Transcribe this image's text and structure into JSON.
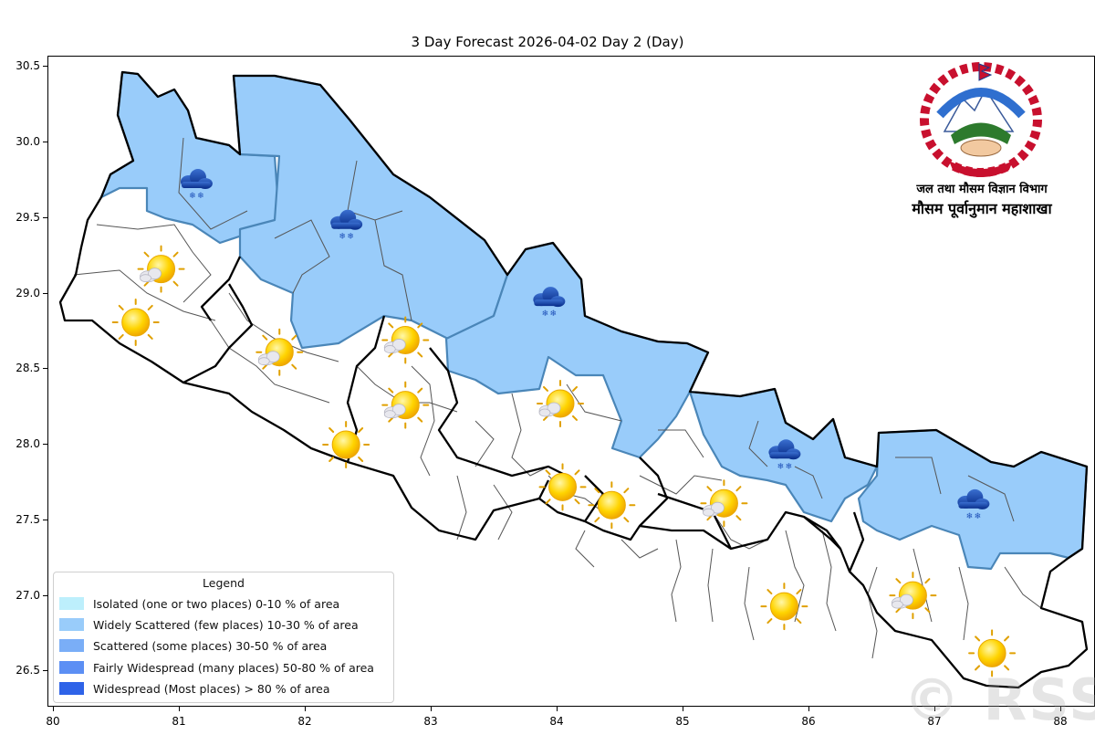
{
  "title": "3 Day Forecast 2026-04-02 Day 2 (Day)",
  "axes": {
    "x_ticks": [
      "80",
      "81",
      "82",
      "83",
      "84",
      "85",
      "86",
      "87",
      "88"
    ],
    "y_ticks": [
      "30.5",
      "30.0",
      "29.5",
      "29.0",
      "28.5",
      "28.0",
      "27.5",
      "27.0",
      "26.5"
    ],
    "xlim": [
      80,
      88.3
    ],
    "ylim": [
      26.25,
      30.55
    ]
  },
  "legend": {
    "title": "Legend",
    "items": [
      {
        "label": "Isolated (one or two places)  0-10 % of area",
        "color": "#bdeffc"
      },
      {
        "label": "Widely Scattered (few places)  10-30 % of area",
        "color": "#99ccfa"
      },
      {
        "label": "Scattered (some places)  30-50 % of area",
        "color": "#7aaef7"
      },
      {
        "label": "Fairly Widespread (many places)  50-80 % of area",
        "color": "#5c8ff4"
      },
      {
        "label": "Widespread (Most places) > 80 % of area",
        "color": "#2e63e8"
      }
    ]
  },
  "department": {
    "line1": "जल तथा मौसम विज्ञान विभाग",
    "line2": "मौसम पूर्वानुमान महाशाखा"
  },
  "watermark": "© RSS",
  "colors": {
    "widely_scattered_fill": "#99ccfa",
    "region_border": "#4a86b8",
    "district_line": "#555555",
    "province_line": "#000000"
  },
  "map_regions": [
    {
      "name": "far-west-mountain",
      "category": "Widely Scattered (few places)"
    },
    {
      "name": "karnali-mountain",
      "category": "Widely Scattered (few places)"
    },
    {
      "name": "gandaki-mountain",
      "category": "Widely Scattered (few places)"
    },
    {
      "name": "bagmati-mountain",
      "category": "Widely Scattered (few places)"
    },
    {
      "name": "koshi-mountain",
      "category": "Widely Scattered (few places)"
    }
  ],
  "weather_icons": [
    {
      "type": "snow-cloud-icon",
      "lon": 81.13,
      "lat": 29.74
    },
    {
      "type": "snow-cloud-icon",
      "lon": 82.32,
      "lat": 29.47
    },
    {
      "type": "snow-cloud-icon",
      "lon": 83.93,
      "lat": 28.96
    },
    {
      "type": "snow-cloud-icon",
      "lon": 85.8,
      "lat": 27.95
    },
    {
      "type": "snow-cloud-icon",
      "lon": 87.3,
      "lat": 27.62
    },
    {
      "type": "sun-cloud-icon",
      "lon": 80.83,
      "lat": 29.15
    },
    {
      "type": "sun-icon",
      "lon": 80.65,
      "lat": 28.81
    },
    {
      "type": "sun-cloud-icon",
      "lon": 81.77,
      "lat": 28.6
    },
    {
      "type": "sun-cloud-icon",
      "lon": 82.77,
      "lat": 28.68
    },
    {
      "type": "sun-cloud-icon",
      "lon": 82.77,
      "lat": 28.25
    },
    {
      "type": "sun-icon",
      "lon": 82.32,
      "lat": 28.0
    },
    {
      "type": "sun-cloud-icon",
      "lon": 84.0,
      "lat": 28.26
    },
    {
      "type": "sun-icon",
      "lon": 84.04,
      "lat": 27.72
    },
    {
      "type": "sun-icon",
      "lon": 84.43,
      "lat": 27.6
    },
    {
      "type": "sun-cloud-icon",
      "lon": 85.3,
      "lat": 27.6
    },
    {
      "type": "sun-icon",
      "lon": 85.8,
      "lat": 26.93
    },
    {
      "type": "sun-cloud-icon",
      "lon": 86.8,
      "lat": 26.99
    },
    {
      "type": "sun-icon",
      "lon": 87.45,
      "lat": 26.62
    }
  ]
}
